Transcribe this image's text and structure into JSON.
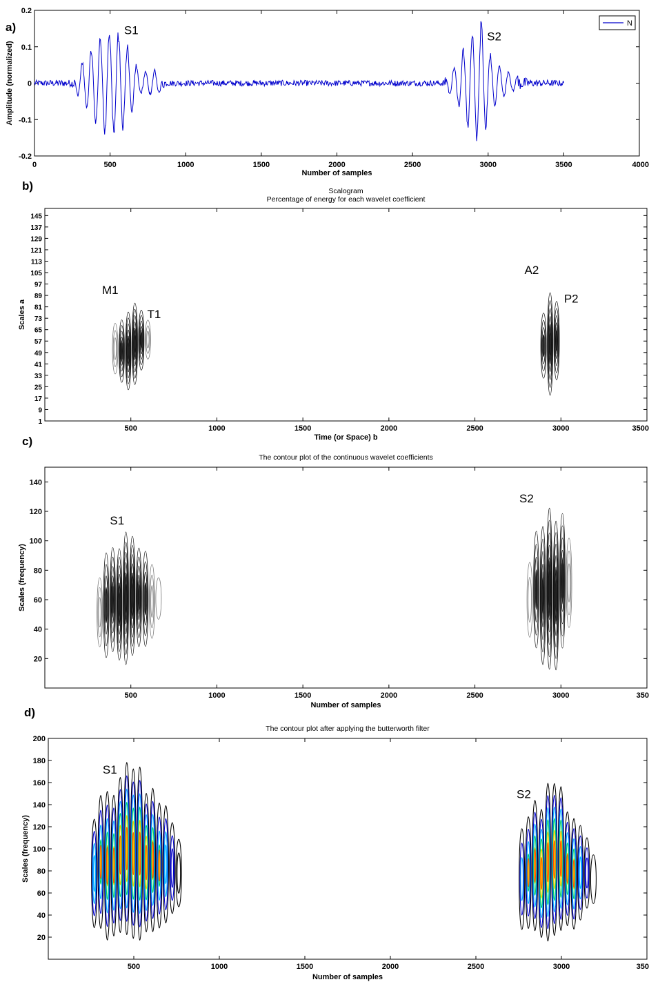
{
  "chart_data": [
    {
      "panel_label": "a)",
      "type": "line",
      "title": "",
      "xlabel": "Number of samples",
      "ylabel": "Amplitude (normalized)",
      "xlim": [
        0,
        4000
      ],
      "ylim": [
        -0.2,
        0.2
      ],
      "xticks": [
        "0",
        "500",
        "1000",
        "1500",
        "2000",
        "2500",
        "3000",
        "3500",
        "4000"
      ],
      "yticks": [
        "-0.2",
        "-0.1",
        "0",
        "0.1",
        "0.2"
      ],
      "legend": {
        "position": "top-right",
        "entries": [
          "N"
        ]
      },
      "series": [
        {
          "name": "N",
          "color": "#0000cc",
          "x_range": [
            0,
            3500
          ],
          "envelope": [
            {
              "x": 0,
              "amp": 0.008
            },
            {
              "x": 250,
              "amp": 0.01
            },
            {
              "x": 300,
              "amp": 0.05
            },
            {
              "x": 400,
              "amp": 0.12
            },
            {
              "x": 480,
              "amp": 0.16
            },
            {
              "x": 570,
              "amp": 0.15
            },
            {
              "x": 630,
              "amp": 0.1
            },
            {
              "x": 700,
              "amp": 0.03
            },
            {
              "x": 800,
              "amp": 0.04
            },
            {
              "x": 870,
              "amp": 0.008
            },
            {
              "x": 2700,
              "amp": 0.008
            },
            {
              "x": 2780,
              "amp": 0.05
            },
            {
              "x": 2850,
              "amp": 0.12
            },
            {
              "x": 2920,
              "amp": 0.16
            },
            {
              "x": 2960,
              "amp": 0.19
            },
            {
              "x": 3010,
              "amp": 0.09
            },
            {
              "x": 3100,
              "amp": 0.04
            },
            {
              "x": 3200,
              "amp": 0.02
            },
            {
              "x": 3300,
              "amp": 0.01
            },
            {
              "x": 3500,
              "amp": 0.008
            }
          ]
        }
      ],
      "annotations": [
        {
          "text": "S1",
          "x": 640,
          "y": 0.135
        },
        {
          "text": "S2",
          "x": 3040,
          "y": 0.118
        }
      ]
    },
    {
      "panel_label": "b)",
      "type": "heatmap",
      "title": "Scalogram",
      "subtitle": "Percentage of energy for each wavelet coefficient",
      "xlabel": "Time (or Space) b",
      "ylabel": "Scales a",
      "xlim": [
        0,
        3500
      ],
      "ylim": [
        1,
        150
      ],
      "xticks": [
        "500",
        "1000",
        "1500",
        "2000",
        "2500",
        "3000",
        "3500"
      ],
      "yticks": [
        "1",
        "9",
        "17",
        "25",
        "33",
        "41",
        "49",
        "57",
        "65",
        "73",
        "81",
        "89",
        "97",
        "105",
        "113",
        "121",
        "129",
        "137",
        "145"
      ],
      "grid": false,
      "clusters": [
        {
          "x_center": 500,
          "x_span": [
            390,
            640
          ],
          "scale_center": 55,
          "scale_span": [
            27,
            80
          ]
        },
        {
          "x_center": 2940,
          "x_span": [
            2880,
            3010
          ],
          "scale_center": 57,
          "scale_span": [
            22,
            92
          ]
        }
      ],
      "annotations": [
        {
          "text": "M1",
          "x": 380,
          "y": 90
        },
        {
          "text": "T1",
          "x": 635,
          "y": 73
        },
        {
          "text": "A2",
          "x": 2830,
          "y": 104
        },
        {
          "text": "P2",
          "x": 3060,
          "y": 84
        }
      ]
    },
    {
      "panel_label": "c)",
      "type": "heatmap",
      "title": "The contour plot of the continuous wavelet coefficients",
      "xlabel": "Number of samples",
      "ylabel": "Scales (frequency)",
      "xlim": [
        0,
        3500
      ],
      "ylim": [
        0,
        150
      ],
      "xticks": [
        "500",
        "1000",
        "1500",
        "2000",
        "2500",
        "3000",
        "350"
      ],
      "yticks": [
        "20",
        "40",
        "60",
        "80",
        "100",
        "120",
        "140"
      ],
      "grid": false,
      "clusters": [
        {
          "x_center": 470,
          "x_span": [
            300,
            690
          ],
          "scale_center": 55,
          "scale_span": [
            18,
            100
          ]
        },
        {
          "x_center": 2940,
          "x_span": [
            2800,
            3070
          ],
          "scale_center": 60,
          "scale_span": [
            15,
            122
          ]
        }
      ],
      "annotations": [
        {
          "text": "S1",
          "x": 420,
          "y": 111
        },
        {
          "text": "S2",
          "x": 2800,
          "y": 126
        }
      ]
    },
    {
      "panel_label": "d)",
      "type": "heatmap",
      "title": "The contour plot after applying the butterworth filter",
      "xlabel": "Number of samples",
      "ylabel": "Scales (frequency)",
      "xlim": [
        0,
        3500
      ],
      "ylim": [
        0,
        200
      ],
      "xticks": [
        "500",
        "1000",
        "1500",
        "2000",
        "2500",
        "3000",
        "350"
      ],
      "yticks": [
        "20",
        "40",
        "60",
        "80",
        "100",
        "120",
        "140",
        "160",
        "180",
        "200"
      ],
      "grid": false,
      "colors": [
        "#000000",
        "#0000cc",
        "#00aaff",
        "#00cc66",
        "#ffcc00",
        "#ff3300"
      ],
      "clusters": [
        {
          "x_center": 480,
          "x_span": [
            250,
            860
          ],
          "scale_center": 55,
          "scale_span": [
            20,
            165
          ]
        },
        {
          "x_center": 2950,
          "x_span": [
            2750,
            3230
          ],
          "scale_center": 60,
          "scale_span": [
            20,
            150
          ]
        }
      ],
      "annotations": [
        {
          "text": "S1",
          "x": 360,
          "y": 168
        },
        {
          "text": "S2",
          "x": 2780,
          "y": 146
        }
      ]
    }
  ]
}
